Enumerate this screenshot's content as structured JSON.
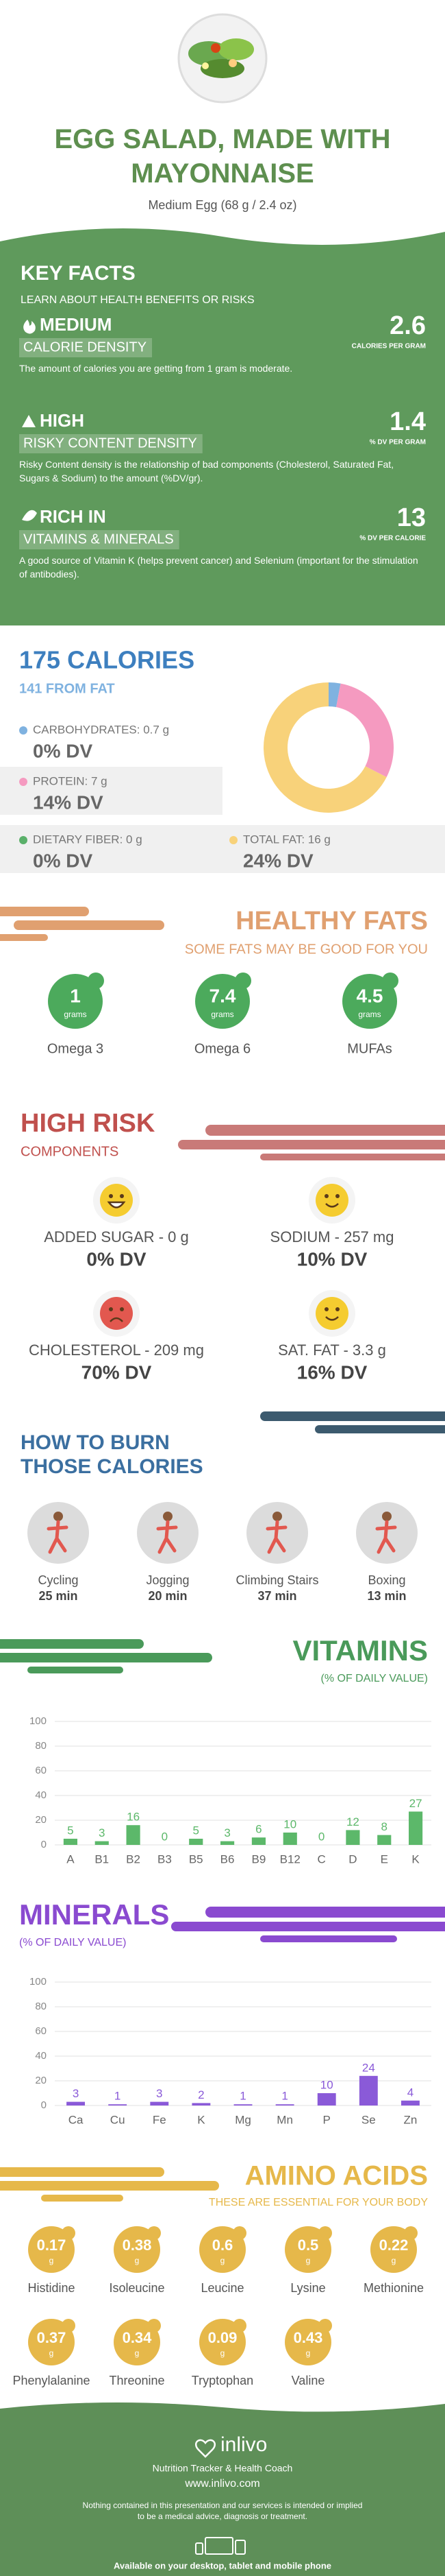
{
  "header": {
    "title": "EGG SALAD, MADE WITH MAYONNAISE",
    "serving": "Medium Egg (68 g / 2.4 oz)"
  },
  "key_facts": {
    "title": "KEY FACTS",
    "subtitle": "LEARN ABOUT HEALTH BENEFITS OR RISKS",
    "facts": [
      {
        "level": "MEDIUM",
        "label": "CALORIE DENSITY",
        "value": 2.6,
        "unit": "CALORIES PER GRAM",
        "description": "The amount of calories you are getting from 1 gram is moderate."
      },
      {
        "level": "HIGH",
        "label": "RISKY CONTENT DENSITY",
        "value": 1.4,
        "unit": "% DV PER GRAM",
        "description": "Risky Content density is the relationship of bad components (Cholesterol, Saturated Fat, Sugars & Sodium) to the amount (%DV/gr)."
      },
      {
        "level": "RICH IN",
        "label": "VITAMINS & MINERALS",
        "value": 13,
        "unit": "% DV PER CALORIE",
        "description": "A good source of Vitamin K (helps prevent cancer) and Selenium (important for the stimulation of antibodies)."
      }
    ]
  },
  "calories": {
    "title": "175 CALORIES",
    "from_fat": "141 FROM FAT",
    "nutrients": [
      {
        "label": "CARBOHYDRATES: 0.7 g",
        "dv": "0% DV",
        "color": "#7fb2e0"
      },
      {
        "label": "PROTEIN: 7 g",
        "dv": "14% DV",
        "color": "#f59ac0"
      },
      {
        "label": "DIETARY FIBER: 0 g",
        "dv": "0% DV",
        "color": "#5ab06a"
      },
      {
        "label": "TOTAL FAT: 16 g",
        "dv": "24% DV",
        "color": "#f8d27a"
      }
    ]
  },
  "healthy_fats": {
    "title": "HEALTHY FATS",
    "subtitle": "SOME FATS MAY BE GOOD FOR YOU",
    "unit": "grams",
    "items": [
      {
        "value": 1,
        "name": "Omega 3"
      },
      {
        "value": 7.4,
        "name": "Omega 6"
      },
      {
        "value": 4.5,
        "name": "MUFAs"
      }
    ]
  },
  "high_risk": {
    "title": "HIGH RISK",
    "subtitle": "COMPONENTS",
    "items": [
      {
        "label": "ADDED SUGAR - 0 g",
        "dv": "0% DV",
        "mood": "laugh"
      },
      {
        "label": "SODIUM - 257 mg",
        "dv": "10% DV",
        "mood": "smile"
      },
      {
        "label": "CHOLESTEROL - 209 mg",
        "dv": "70% DV",
        "mood": "sad"
      },
      {
        "label": "SAT. FAT - 3.3 g",
        "dv": "16% DV",
        "mood": "smile"
      }
    ]
  },
  "burn": {
    "title_1": "HOW TO BURN",
    "title_2": "THOSE CALORIES",
    "activities": [
      {
        "name": "Cycling",
        "time": "25 min"
      },
      {
        "name": "Jogging",
        "time": "20 min"
      },
      {
        "name": "Climbing Stairs",
        "time": "37 min"
      },
      {
        "name": "Boxing",
        "time": "13 min"
      }
    ]
  },
  "amino_acids": {
    "title": "AMINO ACIDS",
    "subtitle": "THESE ARE ESSENTIAL FOR YOUR BODY",
    "unit": "g",
    "items": [
      {
        "name": "Histidine",
        "value": 0.17
      },
      {
        "name": "Isoleucine",
        "value": 0.38
      },
      {
        "name": "Leucine",
        "value": 0.6
      },
      {
        "name": "Lysine",
        "value": 0.5
      },
      {
        "name": "Methionine",
        "value": 0.22
      },
      {
        "name": "Phenylalanine",
        "value": 0.37
      },
      {
        "name": "Threonine",
        "value": 0.34
      },
      {
        "name": "Tryptophan",
        "value": 0.09
      },
      {
        "name": "Valine",
        "value": 0.43
      }
    ]
  },
  "footer": {
    "brand": "inlivo",
    "tagline": "Nutrition Tracker & Health Coach",
    "url": "www.inlivo.com",
    "disclaimer": "Nothing contained in this presentation and our services is intended or implied to be a medical advice, diagnosis or treatment.",
    "availability": "Available on your desktop, tablet and mobile phone"
  },
  "chart_data": [
    {
      "type": "pie",
      "values": [
        0.7,
        7,
        16
      ],
      "colors": [
        "#7fb2e0",
        "#f59ac0",
        "#f8d27a"
      ]
    },
    {
      "type": "bar",
      "title": "VITAMINS",
      "subtitle": "(% OF DAILY VALUE)",
      "categories": [
        "A",
        "B1",
        "B2",
        "B3",
        "B5",
        "B6",
        "B9",
        "B12",
        "C",
        "D",
        "E",
        "K"
      ],
      "values": [
        5,
        3,
        16,
        0,
        5,
        3,
        6,
        10,
        0,
        12,
        8,
        27
      ],
      "color": "#5cb86a",
      "ylim": [
        0,
        100
      ],
      "yticks": [
        0,
        20,
        40,
        60,
        80,
        100
      ],
      "grid": true
    },
    {
      "type": "bar",
      "title": "MINERALS",
      "subtitle": "(% OF DAILY VALUE)",
      "categories": [
        "Ca",
        "Cu",
        "Fe",
        "K",
        "Mg",
        "Mn",
        "P",
        "Se",
        "Zn"
      ],
      "values": [
        3,
        1,
        3,
        2,
        1,
        1,
        10,
        24,
        4
      ],
      "color": "#8a5ad8",
      "ylim": [
        0,
        100
      ],
      "yticks": [
        0,
        20,
        40,
        60,
        80,
        100
      ],
      "grid": true
    }
  ]
}
